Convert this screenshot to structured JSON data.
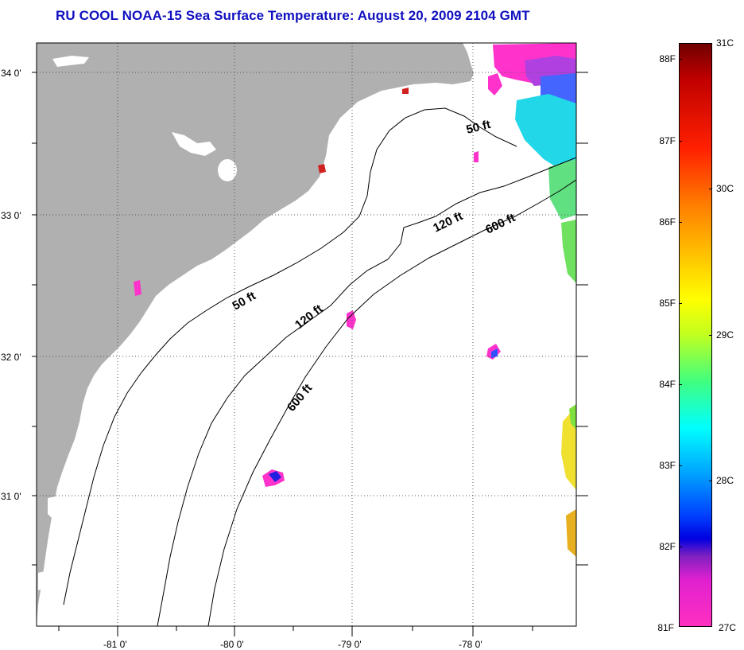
{
  "title": "RU COOL  NOAA-15  Sea Surface Temperature:  August 20, 2009 2104 GMT",
  "map": {
    "lat_labels": [
      "34 0'",
      "33 0'",
      "32 0'",
      "31 0'"
    ],
    "lon_labels": [
      "-81 0'",
      "-80 0'",
      "-79 0'",
      "-78 0'"
    ],
    "contour_labels": [
      "50 ft",
      "120 ft",
      "600 ft",
      "50 ft",
      "120 ft",
      "600 ft"
    ],
    "land_color": "#b0b0b0",
    "ocean_color": "#ffffff"
  },
  "colorbar": {
    "fahrenheit_labels": [
      "88F",
      "87F",
      "86F",
      "85F",
      "84F",
      "83F",
      "82F",
      "81F"
    ],
    "celsius_labels": [
      "31C",
      "30C",
      "29C",
      "28C",
      "27C"
    ]
  }
}
